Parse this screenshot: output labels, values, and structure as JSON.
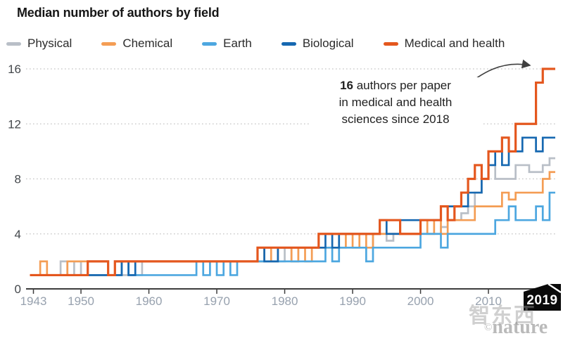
{
  "title": "Median number of authors by field",
  "legend": [
    {
      "label": "Physical",
      "color": "#b9bfc7"
    },
    {
      "label": "Chemical",
      "color": "#f49d54"
    },
    {
      "label": "Earth",
      "color": "#4da7e0"
    },
    {
      "label": "Biological",
      "color": "#1668b1"
    },
    {
      "label": "Medical and health",
      "color": "#e4571e"
    }
  ],
  "annotation": {
    "bold": "16",
    "line1_rest": " authors per paper",
    "line2": "in medical and health",
    "line3": "sciences since 2018"
  },
  "flag": {
    "label": "2019"
  },
  "watermark": {
    "cn": "智东西",
    "copyright": "©",
    "brand": "nature"
  },
  "colors": {
    "axis": "#3d3d3d",
    "grid": "#c3c3c3",
    "ytick_text": "#43474b",
    "xtick_text": "#97a1ae",
    "arrow": "#3f3f3f",
    "flag_bg": "#0a0a0a"
  },
  "chart_data": {
    "type": "line",
    "step": true,
    "title": "Median number of authors by field",
    "xlabel": "",
    "ylabel": "Median number of authors",
    "x_start": 1943,
    "x_end": 2019,
    "xticks": [
      1943,
      1950,
      1960,
      1970,
      1980,
      1990,
      2000,
      2010
    ],
    "yticks": [
      0,
      4,
      8,
      12,
      16
    ],
    "grid_yticks": [
      4,
      8,
      12,
      16
    ],
    "ylim": [
      0,
      16
    ],
    "legend_position": "top",
    "series": [
      {
        "name": "Physical",
        "color": "#b9bfc7",
        "breakpoints": [
          [
            1943,
            1
          ],
          [
            1947,
            2
          ],
          [
            1948,
            1
          ],
          [
            1949,
            2
          ],
          [
            1950,
            1
          ],
          [
            1959,
            2
          ],
          [
            1980,
            3
          ],
          [
            1981,
            2
          ],
          [
            1982,
            3
          ],
          [
            1993,
            4
          ],
          [
            1995,
            3.5
          ],
          [
            1996,
            4
          ],
          [
            2003,
            4.5
          ],
          [
            2004,
            5
          ],
          [
            2006,
            5.5
          ],
          [
            2007,
            6
          ],
          [
            2008,
            7
          ],
          [
            2009,
            8
          ],
          [
            2010,
            9
          ],
          [
            2011,
            8
          ],
          [
            2014,
            9
          ],
          [
            2016,
            8.5
          ],
          [
            2018,
            9
          ],
          [
            2019,
            9.5
          ]
        ]
      },
      {
        "name": "Chemical",
        "color": "#f49d54",
        "breakpoints": [
          [
            1943,
            1
          ],
          [
            1944,
            2
          ],
          [
            1945,
            1
          ],
          [
            1948,
            2
          ],
          [
            1951,
            1
          ],
          [
            1955,
            2
          ],
          [
            1977,
            3
          ],
          [
            1978,
            2
          ],
          [
            1979,
            3
          ],
          [
            1981,
            2
          ],
          [
            1982,
            3
          ],
          [
            1983,
            2
          ],
          [
            1984,
            3
          ],
          [
            1989,
            4
          ],
          [
            1990,
            3
          ],
          [
            1991,
            4
          ],
          [
            1992,
            3
          ],
          [
            1993,
            4
          ],
          [
            2000,
            5
          ],
          [
            2001,
            4
          ],
          [
            2002,
            5
          ],
          [
            2003,
            4
          ],
          [
            2004,
            5
          ],
          [
            2008,
            6
          ],
          [
            2012,
            7
          ],
          [
            2013,
            6.5
          ],
          [
            2014,
            7
          ],
          [
            2018,
            8
          ],
          [
            2019,
            8.5
          ]
        ]
      },
      {
        "name": "Earth",
        "color": "#4da7e0",
        "breakpoints": [
          [
            1943,
            1
          ],
          [
            1956,
            2
          ],
          [
            1957,
            1
          ],
          [
            1967,
            2
          ],
          [
            1968,
            1
          ],
          [
            1969,
            2
          ],
          [
            1970,
            1
          ],
          [
            1971,
            2
          ],
          [
            1972,
            1
          ],
          [
            1973,
            2
          ],
          [
            1986,
            3
          ],
          [
            1987,
            2
          ],
          [
            1988,
            3
          ],
          [
            1992,
            2
          ],
          [
            1993,
            3
          ],
          [
            2000,
            4
          ],
          [
            2003,
            3
          ],
          [
            2004,
            4
          ],
          [
            2011,
            5
          ],
          [
            2013,
            6
          ],
          [
            2014,
            5
          ],
          [
            2017,
            6
          ],
          [
            2018,
            5
          ],
          [
            2019,
            7
          ]
        ]
      },
      {
        "name": "Biological",
        "color": "#1668b1",
        "breakpoints": [
          [
            1943,
            1
          ],
          [
            1956,
            2
          ],
          [
            1957,
            1
          ],
          [
            1958,
            2
          ],
          [
            1976,
            3
          ],
          [
            1977,
            2
          ],
          [
            1979,
            3
          ],
          [
            1986,
            4
          ],
          [
            1987,
            3
          ],
          [
            1988,
            4
          ],
          [
            1994,
            5
          ],
          [
            1995,
            4
          ],
          [
            1997,
            5
          ],
          [
            2003,
            6
          ],
          [
            2007,
            7
          ],
          [
            2009,
            8
          ],
          [
            2010,
            9
          ],
          [
            2011,
            10
          ],
          [
            2012,
            9
          ],
          [
            2013,
            10
          ],
          [
            2015,
            11
          ],
          [
            2017,
            10
          ],
          [
            2018,
            11
          ]
        ]
      },
      {
        "name": "Medical and health",
        "color": "#e4571e",
        "breakpoints": [
          [
            1943,
            1
          ],
          [
            1951,
            2
          ],
          [
            1954,
            1
          ],
          [
            1955,
            2
          ],
          [
            1976,
            3
          ],
          [
            1985,
            4
          ],
          [
            1994,
            5
          ],
          [
            1997,
            4
          ],
          [
            2000,
            5
          ],
          [
            2003,
            6
          ],
          [
            2004,
            5
          ],
          [
            2005,
            6
          ],
          [
            2006,
            7
          ],
          [
            2007,
            8
          ],
          [
            2008,
            9
          ],
          [
            2009,
            8
          ],
          [
            2010,
            10
          ],
          [
            2012,
            11
          ],
          [
            2013,
            10
          ],
          [
            2014,
            12
          ],
          [
            2017,
            15
          ],
          [
            2018,
            16
          ]
        ]
      }
    ],
    "annotation_text": "16 authors per paper in medical and health sciences since 2018",
    "end_year_flag": "2019"
  }
}
